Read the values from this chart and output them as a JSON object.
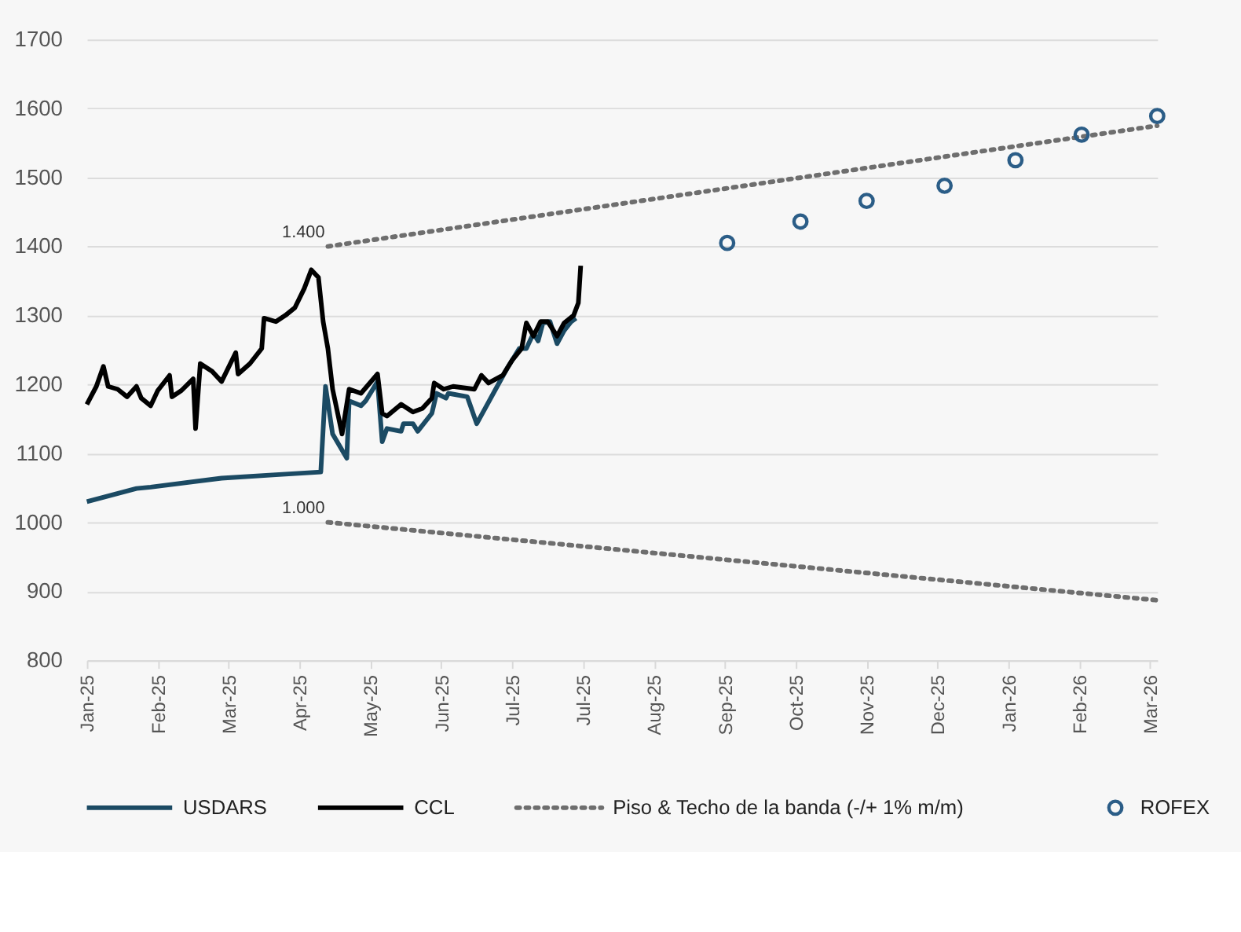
{
  "chart_data": {
    "type": "line",
    "xlim": [
      "2025-01-02",
      "2026-03-31"
    ],
    "xticks": [
      {
        "value": "2025-01-02",
        "label": "Jan-25"
      },
      {
        "value": "2025-02-01",
        "label": "Feb-25"
      },
      {
        "value": "2025-03-03",
        "label": "Mar-25"
      },
      {
        "value": "2025-04-02",
        "label": "Apr-25"
      },
      {
        "value": "2025-05-02",
        "label": "May-25"
      },
      {
        "value": "2025-06-01",
        "label": "Jun-25"
      },
      {
        "value": "2025-07-01",
        "label": "Jul-25"
      },
      {
        "value": "2025-07-31",
        "label": "Jul-25"
      },
      {
        "value": "2025-08-30",
        "label": "Aug-25"
      },
      {
        "value": "2025-09-29",
        "label": "Sep-25"
      },
      {
        "value": "2025-10-29",
        "label": "Oct-25"
      },
      {
        "value": "2025-11-28",
        "label": "Nov-25"
      },
      {
        "value": "2025-12-28",
        "label": "Dec-25"
      },
      {
        "value": "2026-01-27",
        "label": "Jan-26"
      },
      {
        "value": "2026-02-26",
        "label": "Feb-26"
      },
      {
        "value": "2026-03-28",
        "label": "Mar-26"
      }
    ],
    "ylim": [
      800,
      1700
    ],
    "yticks": [
      800,
      900,
      1000,
      1100,
      1200,
      1300,
      1400,
      1500,
      1600,
      1700
    ],
    "grid": "y",
    "legend": "bottom",
    "line_style": "solid",
    "marker": "none",
    "annotations": [
      {
        "text": "1.400",
        "x": "2025-04-14",
        "y": 1400
      },
      {
        "text": "1.000",
        "x": "2025-04-14",
        "y": 1000
      }
    ],
    "series": [
      {
        "name": "USDARS",
        "color": "#1b4a63",
        "x": [
          "2025-01-02",
          "2025-01-23",
          "2025-01-29",
          "2025-02-28",
          "2025-03-23",
          "2025-04-11",
          "2025-04-13",
          "2025-04-16",
          "2025-04-22",
          "2025-04-23",
          "2025-04-28",
          "2025-04-30",
          "2025-05-05",
          "2025-05-07",
          "2025-05-09",
          "2025-05-15",
          "2025-05-16",
          "2025-05-20",
          "2025-05-22",
          "2025-05-28",
          "2025-05-30",
          "2025-06-03",
          "2025-06-04",
          "2025-06-12",
          "2025-06-16",
          "2025-06-24",
          "2025-06-29",
          "2025-07-04",
          "2025-07-07",
          "2025-07-10",
          "2025-07-12",
          "2025-07-14",
          "2025-07-17",
          "2025-07-20",
          "2025-07-23",
          "2025-07-26",
          "2025-07-28"
        ],
        "values": [
          1030,
          1049,
          1051,
          1064,
          1069,
          1073,
          1197,
          1128,
          1093,
          1176,
          1169,
          1176,
          1204,
          1117,
          1136,
          1132,
          1143,
          1143,
          1132,
          1158,
          1187,
          1180,
          1187,
          1182,
          1143,
          1193,
          1224,
          1252,
          1252,
          1274,
          1263,
          1289,
          1291,
          1259,
          1278,
          1291,
          1296
        ]
      },
      {
        "name": "CCL",
        "color": "#000000",
        "x": [
          "2025-01-02",
          "2025-01-06",
          "2025-01-09",
          "2025-01-11",
          "2025-01-15",
          "2025-01-19",
          "2025-01-23",
          "2025-01-25",
          "2025-01-29",
          "2025-02-01",
          "2025-02-06",
          "2025-02-07",
          "2025-02-11",
          "2025-02-16",
          "2025-02-17",
          "2025-02-19",
          "2025-02-24",
          "2025-02-28",
          "2025-03-06",
          "2025-03-07",
          "2025-03-12",
          "2025-03-17",
          "2025-03-18",
          "2025-03-23",
          "2025-03-27",
          "2025-03-31",
          "2025-04-04",
          "2025-04-07",
          "2025-04-10",
          "2025-04-12",
          "2025-04-14",
          "2025-04-16",
          "2025-04-20",
          "2025-04-23",
          "2025-04-28",
          "2025-05-05",
          "2025-05-07",
          "2025-05-09",
          "2025-05-15",
          "2025-05-20",
          "2025-05-24",
          "2025-05-28",
          "2025-05-29",
          "2025-06-02",
          "2025-06-06",
          "2025-06-15",
          "2025-06-18",
          "2025-06-21",
          "2025-06-27",
          "2025-07-01",
          "2025-07-05",
          "2025-07-07",
          "2025-07-10",
          "2025-07-13",
          "2025-07-16",
          "2025-07-20",
          "2025-07-23",
          "2025-07-27",
          "2025-07-29",
          "2025-07-30"
        ],
        "values": [
          1171,
          1197,
          1226,
          1197,
          1193,
          1182,
          1197,
          1180,
          1169,
          1191,
          1213,
          1182,
          1191,
          1208,
          1136,
          1230,
          1219,
          1204,
          1246,
          1215,
          1230,
          1252,
          1296,
          1291,
          1300,
          1311,
          1339,
          1366,
          1355,
          1291,
          1252,
          1193,
          1128,
          1193,
          1187,
          1215,
          1158,
          1154,
          1171,
          1160,
          1165,
          1180,
          1202,
          1193,
          1197,
          1193,
          1213,
          1202,
          1213,
          1235,
          1252,
          1289,
          1270,
          1291,
          1291,
          1270,
          1289,
          1300,
          1318,
          1372
        ]
      },
      {
        "name": "Piso & Techo de la banda (-/+ 1% m/m)",
        "color": "#6e6e6e",
        "line_style": "dotted",
        "x": [
          "2025-04-14",
          "2026-03-31"
        ],
        "values": [
          1400,
          1575
        ]
      },
      {
        "color": "#6e6e6e",
        "line_style": "dotted",
        "x": [
          "2025-04-14",
          "2026-03-31"
        ],
        "values": [
          1000,
          887
        ]
      },
      {
        "name": "ROFEX",
        "type": "scatter",
        "marker": "circle",
        "color": "#2b5d87",
        "x": [
          "2025-09-30",
          "2025-10-31",
          "2025-11-28",
          "2025-12-31",
          "2026-01-30",
          "2026-02-27",
          "2026-03-31"
        ],
        "values": [
          1405,
          1436,
          1466,
          1488,
          1525,
          1562,
          1589
        ]
      }
    ]
  }
}
